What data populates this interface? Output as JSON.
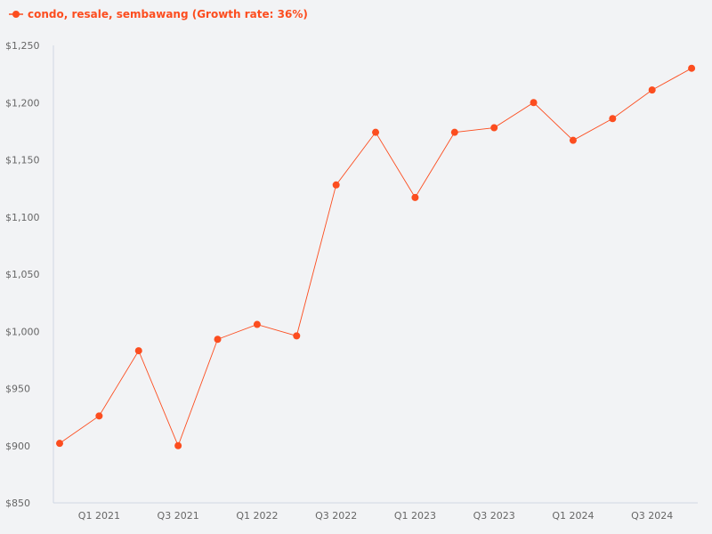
{
  "chart_data": {
    "type": "line",
    "title": "",
    "legend": [
      "condo, resale, sembawang (Growth rate: 36%)"
    ],
    "legend_position": "top-left",
    "xlabel": "",
    "ylabel": "",
    "categories": [
      "Q4 2020",
      "Q1 2021",
      "Q2 2021",
      "Q3 2021",
      "Q4 2021",
      "Q1 2022",
      "Q2 2022",
      "Q3 2022",
      "Q4 2022",
      "Q1 2023",
      "Q2 2023",
      "Q3 2023",
      "Q4 2023",
      "Q1 2024",
      "Q2 2024",
      "Q3 2024",
      "Q4 2024"
    ],
    "x_tick_labels": [
      "Q1 2021",
      "Q3 2021",
      "Q1 2022",
      "Q3 2022",
      "Q1 2023",
      "Q3 2023",
      "Q1 2024",
      "Q3 2024"
    ],
    "series": [
      {
        "name": "condo, resale, sembawang (Growth rate: 36%)",
        "color": "#fc4d1f",
        "values": [
          902,
          926,
          983,
          900,
          993,
          1006,
          996,
          1128,
          1174,
          1117,
          1174,
          1178,
          1200,
          1167,
          1186,
          1211,
          1230
        ]
      }
    ],
    "ylim": [
      850,
      1250
    ],
    "y_ticks": [
      850,
      900,
      950,
      1000,
      1050,
      1100,
      1150,
      1200,
      1250
    ],
    "y_tick_labels": [
      "$850",
      "$900",
      "$950",
      "$1,000",
      "$1,050",
      "$1,100",
      "$1,150",
      "$1,200",
      "$1,250"
    ],
    "grid": false
  }
}
